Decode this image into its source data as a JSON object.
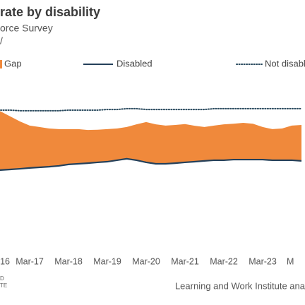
{
  "chart_data": {
    "type": "area",
    "title": "rate by disability",
    "subtitle": "orce Survey",
    "subtitle2": "/",
    "categories": [
      "16",
      null,
      null,
      null,
      "Mar-17",
      null,
      null,
      null,
      "Mar-18",
      null,
      null,
      null,
      "Mar-19",
      null,
      null,
      null,
      "Mar-20",
      null,
      null,
      null,
      "Mar-21",
      null,
      null,
      null,
      "Mar-22",
      null,
      null,
      null,
      "Mar-23",
      null,
      null,
      null,
      "M"
    ],
    "ylim": [
      14,
      85
    ],
    "series": [
      {
        "name": "Gap",
        "color": "#f0893b",
        "stack_on": "Disabled",
        "values": [
          28.1,
          28.1,
          25.4,
          22.7,
          20.3,
          19.3,
          18.3,
          17.6,
          16.9,
          16.6,
          15.9,
          15.6,
          15.6,
          15.2,
          15.2,
          17.2,
          19.3,
          18.9,
          18.3,
          18.3,
          18.3,
          17.2,
          16.2,
          16.6,
          17.2,
          17.2,
          17.6,
          17.2,
          15.6,
          14.9,
          15.2,
          16.6,
          17.2
        ]
      },
      {
        "name": "Disabled",
        "color": "#24405a",
        "values": [
          50.9,
          50.9,
          51.2,
          51.5,
          51.9,
          52.2,
          52.5,
          52.9,
          53.6,
          53.9,
          54.2,
          54.6,
          54.9,
          55.6,
          56.3,
          55.6,
          54.6,
          53.9,
          53.9,
          54.2,
          54.6,
          54.9,
          55.3,
          55.6,
          55.6,
          55.9,
          55.9,
          55.9,
          55.9,
          55.6,
          55.6,
          55.6,
          55.3
        ]
      },
      {
        "name": "Not disabled",
        "color": "#2a4a5e",
        "dash": true,
        "values": [
          79.6,
          79.6,
          79.6,
          79.3,
          79.3,
          79.3,
          79.3,
          79.3,
          79.6,
          79.6,
          79.6,
          79.6,
          79.9,
          79.9,
          80.3,
          80.3,
          79.9,
          79.9,
          79.9,
          79.9,
          79.9,
          79.9,
          79.9,
          80.3,
          80.3,
          80.3,
          80.3,
          80.3,
          80.3,
          80.3,
          80.3,
          80.3,
          80.3
        ]
      }
    ],
    "footnote": [
      "D",
      "TE"
    ],
    "source": "Learning and Work Institute ana"
  }
}
